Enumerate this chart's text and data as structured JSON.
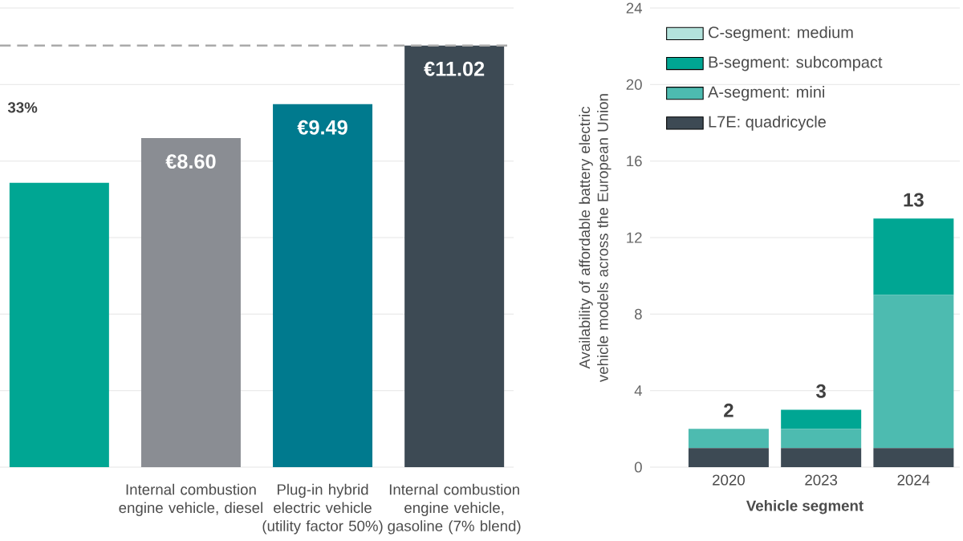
{
  "chart_data": [
    {
      "type": "bar",
      "categories": [
        null,
        "Internal combustion engine vehicle, diesel",
        "Plug-in hybrid electric vehicle (utility factor 50%)",
        "Internal combustion engine vehicle, gasoline (7% blend)"
      ],
      "values": [
        7.43,
        8.6,
        9.49,
        11.02
      ],
      "colors": [
        "#00a693",
        "#8a8d93",
        "#007a8e",
        "#3d4a54"
      ],
      "value_labels": [
        null,
        "€8.60",
        "€9.49",
        "€11.02"
      ],
      "ylim": [
        0,
        12
      ],
      "yticks": [
        {
          "value": 0,
          "label": null
        },
        {
          "value": 2,
          "label": null
        },
        {
          "value": 4,
          "label": null
        },
        {
          "value": 6,
          "label": null
        },
        {
          "value": 8,
          "label": null
        },
        {
          "value": 10,
          "label": null
        },
        {
          "value": 12,
          "label": null
        }
      ],
      "tick_labels": "x",
      "grid": "y",
      "ref_lines": [
        {
          "axis": "y",
          "value": 11.02,
          "color": "#aaaaaa",
          "line_style": "dashed"
        }
      ],
      "annotations": [
        "33%"
      ]
    },
    {
      "type": "bar",
      "stacked": true,
      "categories": [
        "2020",
        "2023",
        "2024"
      ],
      "series": [
        {
          "name": "L7E: quadricycle",
          "color": "#3d4a54",
          "values": [
            1,
            1,
            1
          ]
        },
        {
          "name": "A-segment: mini",
          "color": "#4dbbb0",
          "values": [
            1,
            1,
            8
          ]
        },
        {
          "name": "B-segment: subcompact",
          "color": "#00a693",
          "values": [
            0,
            1,
            4
          ]
        },
        {
          "name": "C-segment: medium",
          "color": "#b3e3dc",
          "values": [
            0,
            0,
            0
          ]
        }
      ],
      "totals": [
        "2",
        "3",
        "13"
      ],
      "ylim": [
        0,
        24
      ],
      "yticks": [
        0,
        4,
        8,
        12,
        16,
        20,
        24
      ],
      "grid": "y",
      "ylabel": "Availability of affordable battery electric vehicle models across the European Union",
      "xlabel": "Vehicle segment",
      "legend": "top left"
    }
  ]
}
